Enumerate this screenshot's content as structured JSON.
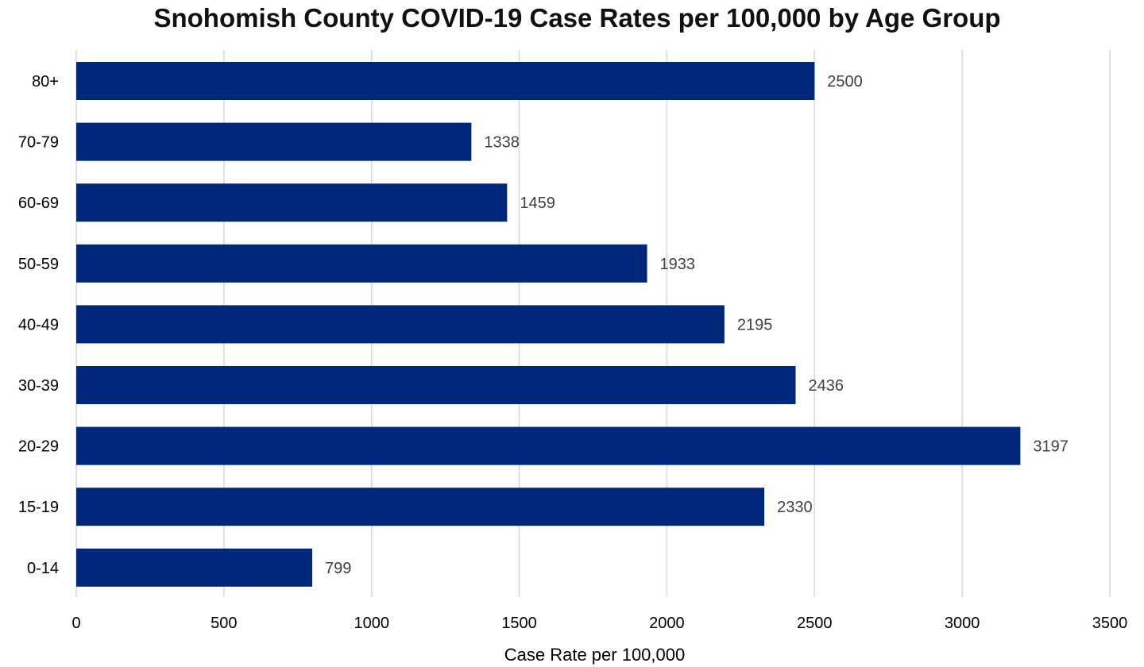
{
  "chart_data": {
    "type": "bar",
    "orientation": "horizontal",
    "title": "Snohomish County COVID-19 Case Rates per 100,000 by Age Group",
    "xlabel": "Case Rate per 100,000",
    "ylabel": "",
    "categories": [
      "80+",
      "70-79",
      "60-69",
      "50-59",
      "40-49",
      "30-39",
      "20-29",
      "15-19",
      "0-14"
    ],
    "values": [
      2500,
      1338,
      1459,
      1933,
      2195,
      2436,
      3197,
      2330,
      799
    ],
    "data_labels": [
      "2500",
      "1338",
      "1459",
      "1933",
      "2195",
      "2436",
      "3197",
      "2330",
      "799"
    ],
    "xlim": [
      0,
      3500
    ],
    "x_ticks": [
      0,
      500,
      1000,
      1500,
      2000,
      2500,
      3000,
      3500
    ],
    "x_tick_labels": [
      "0",
      "500",
      "1000",
      "1500",
      "2000",
      "2500",
      "3000",
      "3500"
    ],
    "grid": "vertical",
    "legend": "none",
    "colors": {
      "bar": "#00287A",
      "grid": "#D9D9D9",
      "text": "#000000",
      "data_label": "#404040"
    }
  }
}
